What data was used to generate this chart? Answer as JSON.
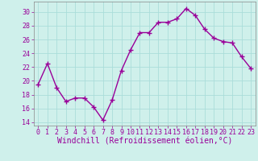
{
  "x": [
    0,
    1,
    2,
    3,
    4,
    5,
    6,
    7,
    8,
    9,
    10,
    11,
    12,
    13,
    14,
    15,
    16,
    17,
    18,
    19,
    20,
    21,
    22,
    23
  ],
  "y": [
    19.5,
    22.5,
    19.0,
    17.0,
    17.5,
    17.5,
    16.2,
    14.3,
    17.2,
    21.5,
    24.5,
    27.0,
    27.0,
    28.5,
    28.5,
    29.0,
    30.5,
    29.5,
    27.5,
    26.2,
    25.7,
    25.5,
    23.5,
    21.8
  ],
  "line_color": "#990099",
  "marker": "+",
  "markersize": 4,
  "linewidth": 1.0,
  "bg_color": "#cff0eb",
  "grid_color": "#aaddda",
  "xlabel": "Windchill (Refroidissement éolien,°C)",
  "xlabel_color": "#990099",
  "xlabel_fontsize": 7,
  "ylabel_ticks": [
    14,
    16,
    18,
    20,
    22,
    24,
    26,
    28,
    30
  ],
  "xtick_labels": [
    "0",
    "1",
    "2",
    "3",
    "4",
    "5",
    "6",
    "7",
    "8",
    "9",
    "10",
    "11",
    "12",
    "13",
    "14",
    "15",
    "16",
    "17",
    "18",
    "19",
    "20",
    "21",
    "22",
    "23"
  ],
  "ylim": [
    13.5,
    31.5
  ],
  "xlim": [
    -0.5,
    23.5
  ],
  "tick_fontsize": 6,
  "tick_color": "#990099",
  "spine_color": "#888888"
}
